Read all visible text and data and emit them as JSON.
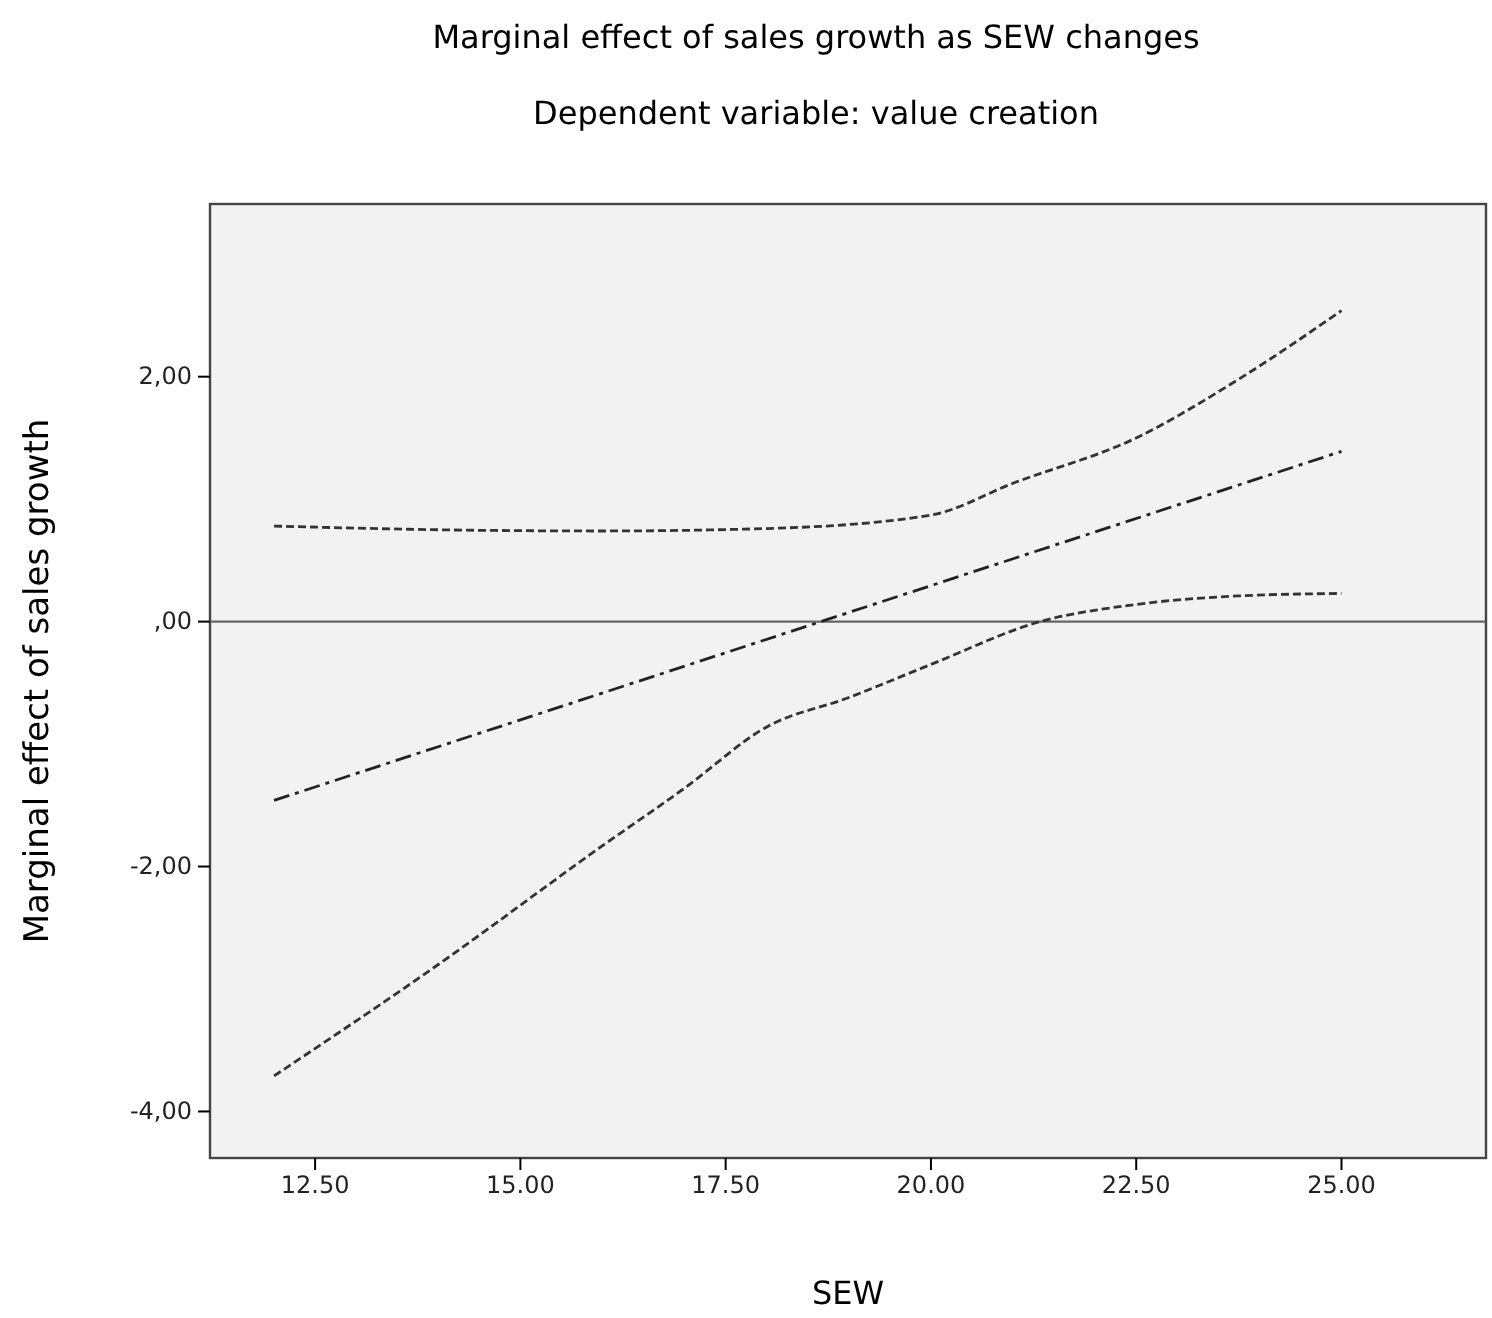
{
  "chart_data": {
    "type": "line",
    "title": "Marginal effect of sales growth as SEW changes",
    "subtitle": "Dependent variable: value creation",
    "xlabel": "SEW",
    "ylabel": "Marginal effect of sales growth",
    "xlim": [
      11.22,
      26.76
    ],
    "xticks": [
      {
        "value": 12.5,
        "label": "12.50"
      },
      {
        "value": 15,
        "label": "15.00"
      },
      {
        "value": 17.5,
        "label": "17.50"
      },
      {
        "value": 20,
        "label": "20.00"
      },
      {
        "value": 22.5,
        "label": "22.50"
      },
      {
        "value": 25,
        "label": "25.00"
      }
    ],
    "ylim": [
      -4.38,
      3.41
    ],
    "yticks": [
      {
        "value": -4,
        "label": "-4,00"
      },
      {
        "value": -2,
        "label": "-2,00"
      },
      {
        "value": 0,
        "label": ",00"
      },
      {
        "value": 2,
        "label": "2,00"
      }
    ],
    "grid": false,
    "marker": "none",
    "ref_lines": [
      {
        "axis": "y",
        "value": 0,
        "color": "#666666",
        "line_style": "solid"
      }
    ],
    "series": [
      {
        "color": "#333333",
        "line_style": "dashed",
        "x": [
          12,
          14,
          16,
          18,
          20,
          21,
          22.5,
          23.75,
          25
        ],
        "values": [
          0.78,
          0.75,
          0.74,
          0.76,
          0.87,
          1.13,
          1.5,
          1.98,
          2.54
        ]
      },
      {
        "color": "#222222",
        "line_style": "dashdot",
        "x": [
          12,
          25
        ],
        "values": [
          -1.46,
          1.39
        ]
      },
      {
        "color": "#333333",
        "line_style": "dashed",
        "x": [
          12,
          14,
          16,
          17,
          18,
          19,
          20,
          21.33,
          22.5,
          23.75,
          25
        ],
        "values": [
          -3.71,
          -2.8,
          -1.83,
          -1.36,
          -0.86,
          -0.62,
          -0.35,
          0,
          0.14,
          0.21,
          0.23
        ]
      }
    ]
  }
}
